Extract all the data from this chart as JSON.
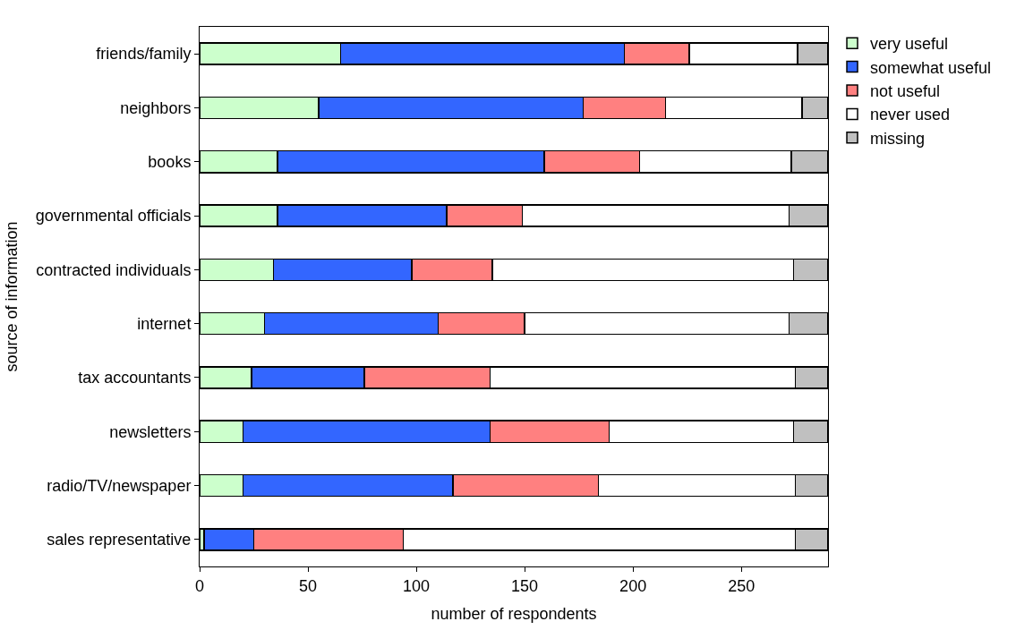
{
  "chart_data": {
    "type": "bar",
    "orientation": "horizontal",
    "stacked": true,
    "xlabel": "number of respondents",
    "ylabel": "source of information",
    "categories": [
      "friends/family",
      "neighbors",
      "books",
      "governmental officials",
      "contracted individuals",
      "internet",
      "tax accountants",
      "newsletters",
      "radio/TV/newspaper",
      "sales representative"
    ],
    "series": [
      {
        "name": "very useful",
        "color": "#ccffcc",
        "values": [
          65,
          55,
          36,
          36,
          34,
          30,
          24,
          20,
          20,
          2
        ]
      },
      {
        "name": "somewhat useful",
        "color": "#3366ff",
        "values": [
          131,
          122,
          123,
          78,
          64,
          80,
          52,
          114,
          97,
          23
        ]
      },
      {
        "name": "not useful",
        "color": "#ff8080",
        "values": [
          30,
          38,
          44,
          35,
          37,
          40,
          58,
          55,
          67,
          69
        ]
      },
      {
        "name": "never used",
        "color": "#ffffff",
        "values": [
          50,
          63,
          70,
          123,
          139,
          122,
          141,
          85,
          91,
          181
        ]
      },
      {
        "name": "missing",
        "color": "#c0c0c0",
        "values": [
          14,
          12,
          17,
          18,
          16,
          18,
          15,
          16,
          15,
          15
        ]
      }
    ],
    "xlim": [
      0,
      290
    ],
    "xticks": [
      0,
      50,
      100,
      150,
      200,
      250
    ],
    "legend": "top right"
  }
}
